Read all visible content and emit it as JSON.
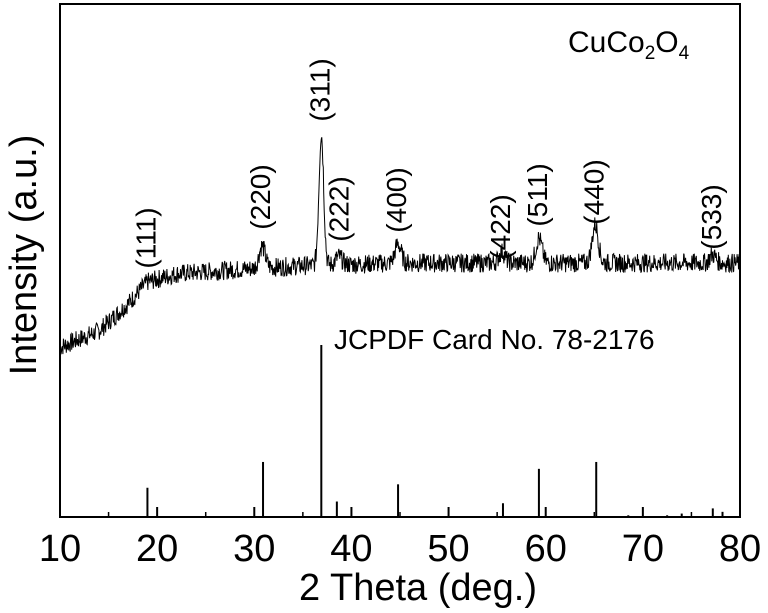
{
  "chart_data": {
    "type": "line",
    "xlabel": "2 Theta (deg.)",
    "ylabel": "Intensity (a.u.)",
    "xlim": [
      10,
      80
    ],
    "xticks": [
      10,
      20,
      30,
      40,
      50,
      60,
      70,
      80
    ],
    "xtick_labels": [
      "10",
      "20",
      "30",
      "40",
      "50",
      "60",
      "70",
      "80"
    ],
    "sample_label": "CuCo₂O₄",
    "sample_label_parts": {
      "base1": "CuCo",
      "sub1": "2",
      "base2": "O",
      "sub2": "4"
    },
    "reference_label": "JCPDF Card No. 78-2176",
    "y_ticks_shown": false,
    "grid": false,
    "series": [
      {
        "name": "CuCo₂O₄",
        "note_x_y": "relative intensity, baseline-and-peak trace",
        "baseline": [
          [
            10,
            0.12
          ],
          [
            14,
            0.18
          ],
          [
            17,
            0.28
          ],
          [
            19,
            0.36
          ],
          [
            22,
            0.39
          ],
          [
            30,
            0.41
          ],
          [
            35,
            0.42
          ],
          [
            45,
            0.43
          ],
          [
            55,
            0.43
          ],
          [
            65,
            0.43
          ],
          [
            80,
            0.43
          ]
        ],
        "peaks": [
          {
            "x": 30.8,
            "height": 0.08,
            "hkl": "(220)"
          },
          {
            "x": 36.9,
            "height": 0.48,
            "hkl": "(311)"
          },
          {
            "x": 38.7,
            "height": 0.03,
            "hkl": "(222)"
          },
          {
            "x": 44.8,
            "height": 0.07,
            "hkl": "(400)"
          },
          {
            "x": 55.5,
            "height": 0.04,
            "hkl": "(422)"
          },
          {
            "x": 59.3,
            "height": 0.09,
            "hkl": "(511)"
          },
          {
            "x": 65.1,
            "height": 0.14,
            "hkl": "(440)"
          },
          {
            "x": 77.2,
            "height": 0.03,
            "hkl": "(533)"
          }
        ]
      }
    ],
    "hkl_labels": [
      {
        "text": "(111)",
        "x": 19.0
      },
      {
        "text": "(220)",
        "x": 30.8
      },
      {
        "text": "(311)",
        "x": 36.9
      },
      {
        "text": "(222)",
        "x": 38.9
      },
      {
        "text": "(400)",
        "x": 44.8
      },
      {
        "text": "(422)",
        "x": 55.5
      },
      {
        "text": "(511)",
        "x": 59.3
      },
      {
        "text": "(440)",
        "x": 65.1
      },
      {
        "text": "(533)",
        "x": 77.2
      }
    ],
    "reference_lines": [
      {
        "x": 19.0,
        "intensity": 17
      },
      {
        "x": 30.9,
        "intensity": 32
      },
      {
        "x": 36.9,
        "intensity": 100
      },
      {
        "x": 38.5,
        "intensity": 9
      },
      {
        "x": 44.8,
        "intensity": 19
      },
      {
        "x": 55.6,
        "intensity": 8
      },
      {
        "x": 59.3,
        "intensity": 28
      },
      {
        "x": 65.2,
        "intensity": 32
      },
      {
        "x": 68.5,
        "intensity": 1
      },
      {
        "x": 72.5,
        "intensity": 1
      },
      {
        "x": 74.0,
        "intensity": 2
      },
      {
        "x": 77.2,
        "intensity": 5
      },
      {
        "x": 78.2,
        "intensity": 3
      }
    ]
  }
}
